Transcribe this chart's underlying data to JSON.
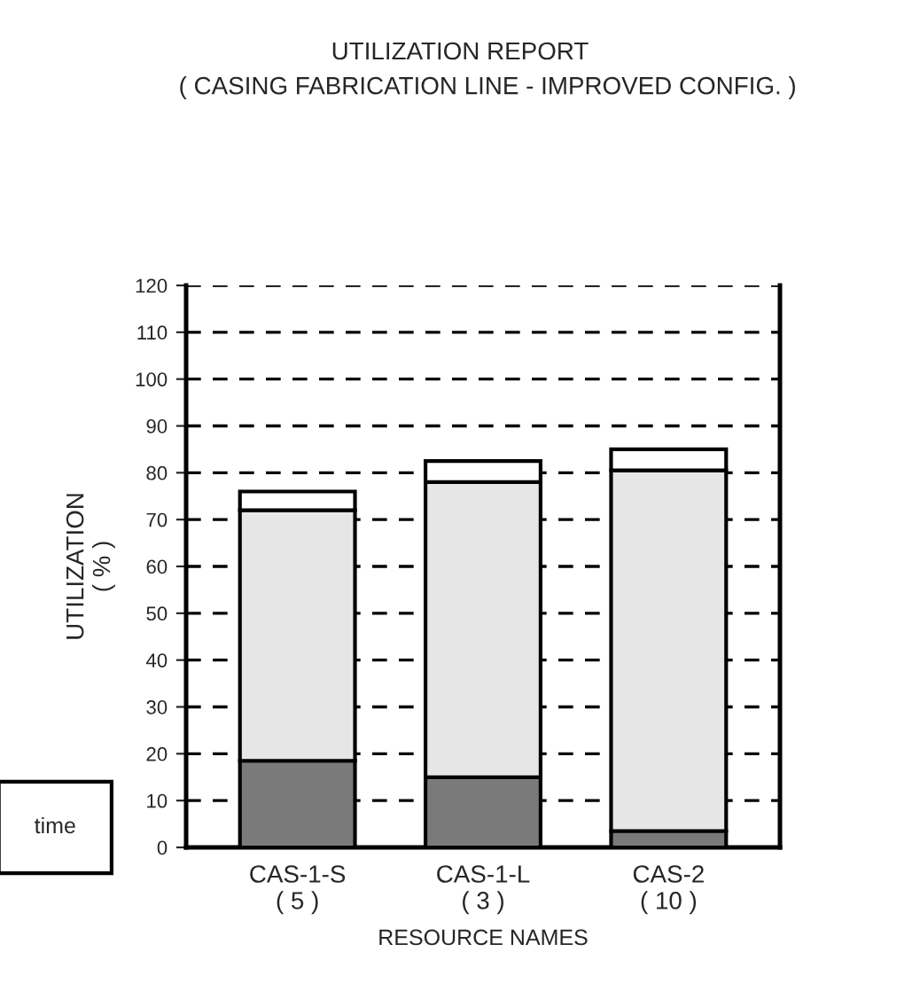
{
  "chart_data": {
    "type": "bar",
    "title": "UTILIZATION REPORT",
    "subtitle": "( CASING FABRICATION LINE - IMPROVED CONFIG. )",
    "xlabel": "RESOURCE NAMES",
    "ylabel": "UTILIZATION\n( % )",
    "categories": [
      "CAS-1-S\n( 5 )",
      "CAS-1-L\n( 3 )",
      "CAS-2\n( 10 )"
    ],
    "stacked": true,
    "series": [
      {
        "color": "#7a7a7a",
        "values": [
          18.5,
          15,
          3.5
        ]
      },
      {
        "color": "#e6e6e6",
        "values": [
          53.5,
          63,
          77
        ]
      },
      {
        "color": "#ffffff",
        "values": [
          4,
          4.5,
          4.5
        ]
      }
    ],
    "ylim": [
      0,
      120
    ],
    "yticks": [
      0,
      10,
      20,
      30,
      40,
      50,
      60,
      70,
      80,
      90,
      100,
      110,
      120
    ],
    "grid": "y",
    "annotations": [
      "time"
    ]
  }
}
